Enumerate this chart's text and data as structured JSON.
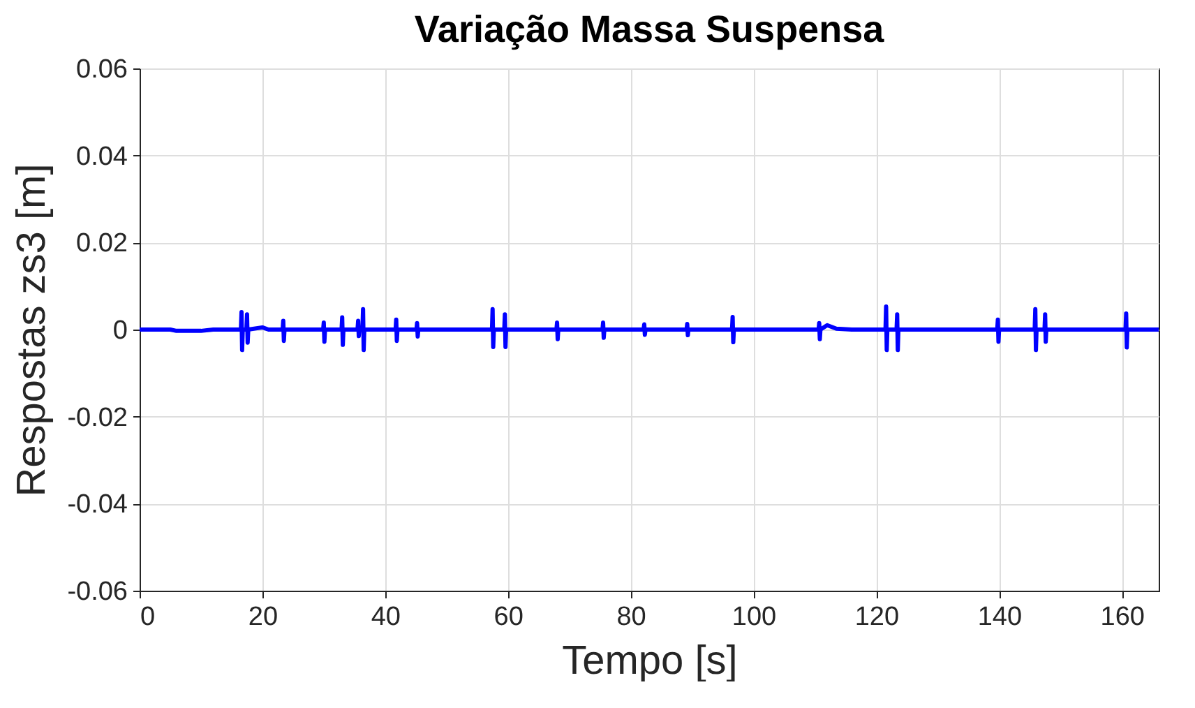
{
  "chart_data": {
    "type": "line",
    "title": "Variação Massa Suspensa",
    "xlabel": "Tempo [s]",
    "ylabel": "Respostas zs3 [m]",
    "series": [
      {
        "color": "#0000ff",
        "x": [
          0,
          5,
          6,
          10,
          12,
          16.5,
          16.6,
          16.7,
          16.8,
          17.4,
          17.5,
          17.6,
          17.7,
          20,
          21,
          23.3,
          23.4,
          23.5,
          23.6,
          29.9,
          30,
          30.1,
          30.2,
          32.9,
          33,
          33.1,
          33.2,
          35.5,
          35.6,
          35.7,
          35.8,
          36.3,
          36.4,
          36.5,
          36.6,
          41.7,
          41.8,
          41.9,
          42,
          45.1,
          45.2,
          45.3,
          45.4,
          57.4,
          57.5,
          57.6,
          57.7,
          59.4,
          59.5,
          59.6,
          59.7,
          67.9,
          68,
          68.1,
          68.2,
          75.4,
          75.5,
          75.6,
          75.7,
          82.1,
          82.2,
          82.3,
          82.4,
          89.1,
          89.2,
          89.3,
          89.4,
          96.5,
          96.6,
          96.7,
          96.8,
          110.6,
          110.7,
          110.8,
          110.9,
          112,
          113.5,
          116,
          121.5,
          121.6,
          121.7,
          121.8,
          123.3,
          123.4,
          123.5,
          123.6,
          139.7,
          139.8,
          139.9,
          140,
          145.8,
          145.9,
          146,
          146.1,
          147.4,
          147.5,
          147.6,
          147.7,
          160.6,
          160.7,
          160.8,
          160.9,
          166
        ],
        "values": [
          0,
          0,
          -0.0003,
          -0.0003,
          0,
          0,
          0.004,
          -0.0047,
          0,
          0,
          0.0035,
          -0.003,
          0,
          0.0005,
          0,
          0,
          0.002,
          -0.0026,
          0,
          0,
          0.0016,
          -0.0028,
          0,
          0,
          0.0028,
          -0.0035,
          0,
          0,
          0.002,
          -0.0015,
          0,
          0,
          0.0047,
          -0.0047,
          0,
          0,
          0.0023,
          -0.0026,
          0,
          0,
          0.0015,
          -0.0016,
          0,
          0,
          0.0047,
          -0.004,
          0,
          0,
          0.0035,
          -0.004,
          0,
          0,
          0.0016,
          -0.0022,
          0,
          0,
          0.0016,
          -0.0019,
          0,
          0,
          0.0012,
          -0.0012,
          0,
          0,
          0.0013,
          -0.0013,
          0,
          0,
          0.0029,
          -0.0029,
          0,
          0,
          0.0015,
          -0.0022,
          0,
          0.001,
          0.0002,
          0,
          0,
          0.0053,
          -0.0047,
          0,
          0,
          0.0035,
          -0.0047,
          0,
          0,
          0.0023,
          -0.0028,
          0,
          0,
          0.0047,
          -0.0047,
          0,
          0,
          0.0035,
          -0.0028,
          0,
          0,
          0.0037,
          -0.0041,
          0,
          0
        ]
      }
    ],
    "xlim": [
      0,
      166
    ],
    "xticks": [
      0,
      20,
      40,
      60,
      80,
      100,
      120,
      140,
      160
    ],
    "ylim": [
      -0.06,
      0.06
    ],
    "yticks": [
      -0.06,
      -0.04,
      -0.02,
      0,
      0.02,
      0.04,
      0.06
    ],
    "grid": true
  }
}
